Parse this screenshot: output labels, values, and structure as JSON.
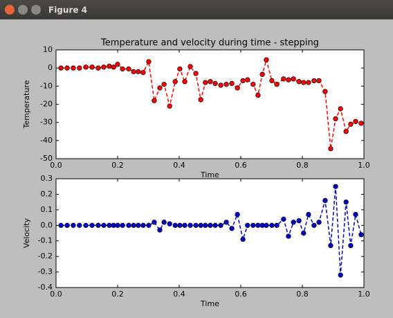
{
  "window_title": "Figure 4",
  "chart_data": [
    {
      "type": "line",
      "title": "Temperature and velocity during time - stepping",
      "x_label": "Time",
      "y_label": "Temperature",
      "x": [
        0.016,
        0.036,
        0.056,
        0.076,
        0.097,
        0.117,
        0.137,
        0.155,
        0.173,
        0.187,
        0.2,
        0.216,
        0.236,
        0.252,
        0.267,
        0.283,
        0.301,
        0.319,
        0.337,
        0.351,
        0.369,
        0.387,
        0.402,
        0.418,
        0.436,
        0.454,
        0.47,
        0.485,
        0.501,
        0.517,
        0.535,
        0.553,
        0.571,
        0.589,
        0.607,
        0.622,
        0.64,
        0.656,
        0.67,
        0.683,
        0.701,
        0.717,
        0.739,
        0.755,
        0.771,
        0.789,
        0.804,
        0.82,
        0.838,
        0.854,
        0.874,
        0.892,
        0.908,
        0.924,
        0.942,
        0.957,
        0.973,
        0.991
      ],
      "series": [
        {
          "color": "#ff0000",
          "values": [
            0,
            0,
            0,
            0,
            0.5,
            0.5,
            0,
            0.5,
            1,
            0.5,
            2,
            -0.5,
            -0.5,
            -2,
            -2,
            -2.5,
            3.5,
            -18,
            -11,
            -9,
            -21,
            -7.5,
            -0.5,
            -7.5,
            0.8,
            -3,
            -17.5,
            -8,
            -7.5,
            -8.5,
            -9.5,
            -9,
            -8.5,
            -11,
            -7,
            -6.5,
            -9,
            -15,
            -3.5,
            4.5,
            -7,
            -9,
            -6,
            -6.5,
            -6,
            -7.5,
            -8,
            -8,
            -7,
            -7,
            -13,
            -44.5,
            -28,
            -22.5,
            -35,
            -31,
            -29.5,
            -30.5
          ]
        }
      ],
      "xlim": [
        0,
        1
      ],
      "xticks": [
        {
          "value": 0,
          "label": "0.0"
        },
        0.2,
        0.4,
        0.6,
        0.8,
        {
          "value": 1,
          "label": "1.0"
        }
      ],
      "ylim": [
        -50,
        10
      ],
      "yticks": [
        -50,
        -40,
        -30,
        -20,
        -10,
        0,
        10
      ]
    },
    {
      "type": "line",
      "x_label": "Time",
      "y_label": "Velocity",
      "x": [
        0.016,
        0.036,
        0.056,
        0.076,
        0.097,
        0.117,
        0.137,
        0.155,
        0.173,
        0.187,
        0.2,
        0.216,
        0.236,
        0.252,
        0.267,
        0.283,
        0.301,
        0.319,
        0.337,
        0.351,
        0.369,
        0.387,
        0.402,
        0.418,
        0.436,
        0.454,
        0.47,
        0.485,
        0.501,
        0.517,
        0.535,
        0.553,
        0.571,
        0.589,
        0.607,
        0.622,
        0.64,
        0.656,
        0.67,
        0.683,
        0.701,
        0.717,
        0.739,
        0.755,
        0.771,
        0.789,
        0.804,
        0.82,
        0.838,
        0.854,
        0.874,
        0.892,
        0.908,
        0.924,
        0.942,
        0.957,
        0.973,
        0.991
      ],
      "series": [
        {
          "color": "#0000cc",
          "values": [
            0,
            0,
            0,
            0,
            0,
            0,
            0,
            0,
            0,
            0,
            0,
            0,
            0,
            0,
            0,
            0,
            0,
            0.02,
            -0.03,
            0.02,
            0.01,
            0,
            0,
            0,
            0,
            0,
            0,
            0,
            0,
            0,
            0,
            0.02,
            -0.02,
            0.07,
            -0.09,
            0,
            0,
            0,
            0,
            0,
            0,
            0,
            0.04,
            -0.07,
            0.02,
            0.03,
            -0.05,
            0.07,
            0,
            0.02,
            0.16,
            -0.13,
            0.25,
            -0.32,
            0.15,
            -0.13,
            0.07,
            -0.06
          ]
        }
      ],
      "xlim": [
        0,
        1
      ],
      "xticks": [
        {
          "value": 0,
          "label": "0.0"
        },
        0.2,
        0.4,
        0.6,
        0.8,
        {
          "value": 1,
          "label": "1.0"
        }
      ],
      "ylim": [
        -0.4,
        0.3
      ],
      "yticks": [
        -0.4,
        -0.3,
        -0.2,
        -0.1,
        {
          "value": 0,
          "label": "0.0"
        },
        0.1,
        0.2,
        0.3
      ]
    }
  ]
}
